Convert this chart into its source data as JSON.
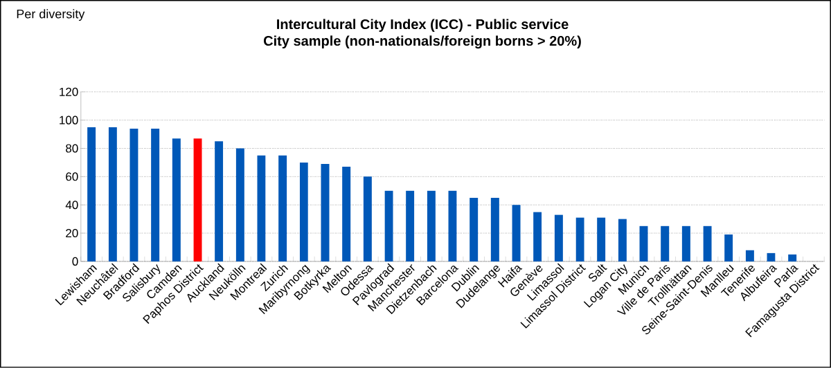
{
  "chart_data": {
    "type": "bar",
    "title": "Intercultural City Index (ICC) - Public service",
    "subtitle": "City sample (non-nationals/foreign borns > 20%)",
    "annotations": [
      "Per diversity"
    ],
    "categories": [
      "Lewisham",
      "Neuchâtel",
      "Bradford",
      "Salisbury",
      "Camden",
      "Paphos District",
      "Auckland",
      "Neukölln",
      "Montreal",
      "Zurich",
      "Maribyrnong",
      "Botkyrka",
      "Melton",
      "Odessa",
      "Pavlograd",
      "Manchester",
      "Dietzenbach",
      "Barcelona",
      "Dublin",
      "Dudelange",
      "Haifa",
      "Genève",
      "Limassol",
      "Limassol District",
      "Salt",
      "Logan City",
      "Munich",
      "Ville de Paris",
      "Trollhättan",
      "Seine-Saint-Denis",
      "Manlleu",
      "Tenerife",
      "Albufeira",
      "Parla",
      "Famagusta District"
    ],
    "values": [
      95,
      95,
      94,
      94,
      87,
      87,
      85,
      80,
      75,
      75,
      70,
      69,
      67,
      60,
      50,
      50,
      50,
      50,
      45,
      45,
      40,
      35,
      33,
      31,
      31,
      30,
      25,
      25,
      25,
      25,
      19,
      8,
      6,
      5,
      0
    ],
    "colors": [
      "#0058b8",
      "#0058b8",
      "#0058b8",
      "#0058b8",
      "#0058b8",
      "#ff0000",
      "#0058b8",
      "#0058b8",
      "#0058b8",
      "#0058b8",
      "#0058b8",
      "#0058b8",
      "#0058b8",
      "#0058b8",
      "#0058b8",
      "#0058b8",
      "#0058b8",
      "#0058b8",
      "#0058b8",
      "#0058b8",
      "#0058b8",
      "#0058b8",
      "#0058b8",
      "#0058b8",
      "#0058b8",
      "#0058b8",
      "#0058b8",
      "#0058b8",
      "#0058b8",
      "#0058b8",
      "#0058b8",
      "#0058b8",
      "#0058b8",
      "#0058b8",
      "#0058b8"
    ],
    "ylim": [
      0,
      120
    ],
    "yticks": [
      0,
      20,
      40,
      60,
      80,
      100,
      120
    ],
    "grid": "y"
  }
}
